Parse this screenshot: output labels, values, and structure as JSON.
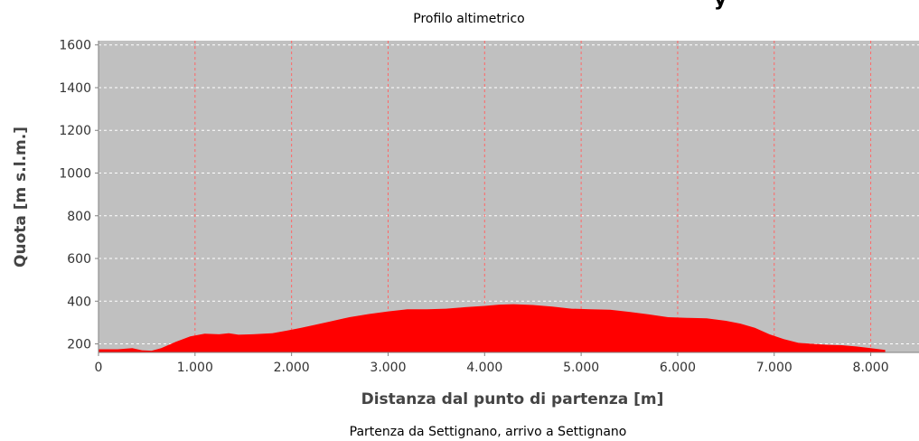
{
  "chart_data": {
    "type": "area",
    "subtitle": "Profilo altimetrico",
    "xlabel": "Distanza dal punto di partenza [m]",
    "ylabel": "Quota [m s.l.m.]",
    "footer": "Partenza da Settignano, arrivo a Settignano",
    "xlim": [
      0,
      8500
    ],
    "ylim": [
      160,
      1620
    ],
    "x_ticks": [
      0,
      1000,
      2000,
      3000,
      4000,
      5000,
      6000,
      7000,
      8000
    ],
    "x_tick_labels": [
      "0",
      "1.000",
      "2.000",
      "3.000",
      "4.000",
      "5.000",
      "6.000",
      "7.000",
      "8.000"
    ],
    "y_ticks": [
      200,
      400,
      600,
      800,
      1000,
      1200,
      1400,
      1600
    ],
    "y_tick_labels": [
      "200",
      "400",
      "600",
      "800",
      "1000",
      "1200",
      "1400",
      "1600"
    ],
    "grid": true,
    "colors": {
      "fill": "#ff0000",
      "plot_bg": "#c0c0c0",
      "v_grid": "#ff6666",
      "h_grid": "#ffffff"
    },
    "series": [
      {
        "x": [
          0,
          200,
          350,
          450,
          550,
          650,
          800,
          950,
          1100,
          1250,
          1350,
          1450,
          1600,
          1800,
          1950,
          2100,
          2250,
          2400,
          2600,
          2800,
          3000,
          3200,
          3400,
          3600,
          3800,
          4000,
          4150,
          4300,
          4500,
          4700,
          4900,
          5100,
          5300,
          5500,
          5700,
          5900,
          6100,
          6300,
          6500,
          6650,
          6800,
          6950,
          7100,
          7250,
          7400,
          7550,
          7700,
          7850,
          8000,
          8150
        ],
        "y": [
          175,
          175,
          180,
          170,
          168,
          180,
          210,
          235,
          248,
          245,
          250,
          243,
          245,
          250,
          262,
          275,
          290,
          305,
          325,
          340,
          352,
          362,
          362,
          365,
          372,
          378,
          384,
          386,
          382,
          375,
          365,
          362,
          360,
          350,
          338,
          325,
          322,
          320,
          308,
          295,
          275,
          245,
          222,
          205,
          200,
          196,
          194,
          188,
          180,
          172
        ]
      }
    ]
  }
}
